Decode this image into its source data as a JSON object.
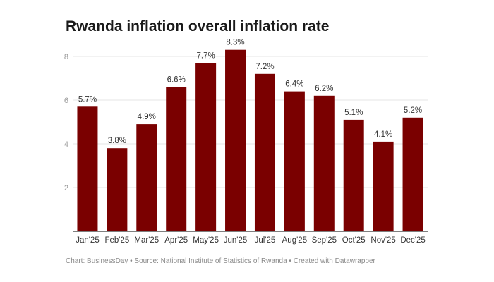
{
  "chart_data": {
    "type": "bar",
    "title": "Rwanda inflation overall inflation rate",
    "xlabel": "",
    "ylabel": "",
    "categories": [
      "Jan'25",
      "Feb'25",
      "Mar'25",
      "Apr'25",
      "May'25",
      "Jun'25",
      "Jul'25",
      "Aug'25",
      "Sep'25",
      "Oct'25",
      "Nov'25",
      "Dec'25"
    ],
    "values": [
      5.7,
      3.8,
      4.9,
      6.6,
      7.7,
      8.3,
      7.2,
      6.4,
      6.2,
      5.1,
      4.1,
      5.2
    ],
    "data_labels": [
      "5.7%",
      "3.8%",
      "4.9%",
      "6.6%",
      "7.7%",
      "8.3%",
      "7.2%",
      "6.4%",
      "6.2%",
      "5.1%",
      "4.1%",
      "5.2%"
    ],
    "ylim": [
      0,
      8.3
    ],
    "yticks": [
      2,
      4,
      6,
      8
    ],
    "grid": true,
    "bar_color": "#7a0000",
    "footer": "Chart: BusinessDay • Source: National Institute of Statistics of Rwanda • Created with Datawrapper"
  }
}
